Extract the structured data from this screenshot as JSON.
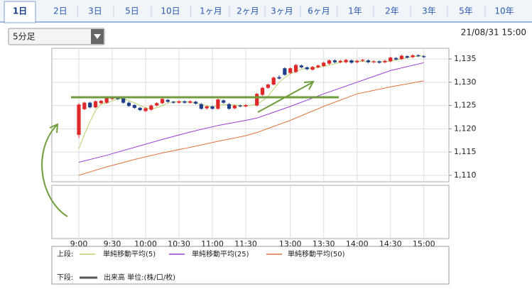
{
  "tabs": [
    "1日",
    "2日",
    "3日",
    "5日",
    "10日",
    "1ヶ月",
    "2ヶ月",
    "3ヶ月",
    "6ヶ月",
    "1年",
    "2年",
    "3年",
    "5年",
    "10年"
  ],
  "selected_tab": 0,
  "interval_select": "5分足",
  "timestamp": "21/08/31 15:00",
  "chart_data": {
    "type": "candlestick",
    "x": [
      0,
      1,
      2,
      3,
      4,
      5,
      6,
      7,
      8,
      9,
      10,
      11,
      12,
      13,
      14,
      15,
      16,
      17,
      18,
      19,
      20,
      21,
      22,
      23,
      24,
      25,
      26,
      27,
      28,
      29,
      30,
      32,
      33,
      34,
      35,
      36,
      37,
      38,
      39,
      40,
      41,
      42,
      43,
      44,
      45,
      46,
      47,
      48,
      49,
      50,
      51,
      52,
      53,
      54,
      55,
      56,
      57,
      58,
      59,
      60,
      61,
      62
    ],
    "open": [
      1118.7,
      1124.2,
      1125.6,
      1124.6,
      1125.5,
      1125.6,
      1126.4,
      1126.7,
      1126.5,
      1125.6,
      1125.1,
      1124.5,
      1123.8,
      1124.1,
      1125,
      1125.5,
      1126.2,
      1125.8,
      1125.6,
      1125.9,
      1125.6,
      1125.8,
      1125.3,
      1124.4,
      1124.8,
      1124.3,
      1126.1,
      1125.3,
      1124.4,
      1125,
      1124.8,
      1125,
      1127.3,
      1128.8,
      1129.5,
      1131.1,
      1133,
      1132,
      1132.2,
      1133.6,
      1133.2,
      1132.7,
      1133.2,
      1133.5,
      1134,
      1134.7,
      1134.3,
      1134.3,
      1134.7,
      1134.3,
      1134.6,
      1134.7,
      1134.3,
      1134.5,
      1134.3,
      1134.5,
      1135.2,
      1135,
      1135.6,
      1135.4,
      1135.8,
      1135.6
    ],
    "high": [
      1125.5,
      1125.8,
      1125.8,
      1126.1,
      1126.2,
      1126.8,
      1127,
      1126.9,
      1126.7,
      1125.8,
      1125.3,
      1124.7,
      1124.6,
      1125.2,
      1125.7,
      1126.6,
      1126.4,
      1126,
      1126.1,
      1126.1,
      1126.1,
      1126,
      1125.5,
      1125,
      1125,
      1126.5,
      1126.3,
      1125.5,
      1125.2,
      1125.2,
      1125.3,
      1127.7,
      1129,
      1129.7,
      1131.2,
      1131.5,
      1133.2,
      1133.2,
      1133.9,
      1133.8,
      1133.4,
      1133.5,
      1133.8,
      1134.4,
      1134.9,
      1134.9,
      1134.8,
      1135,
      1134.9,
      1134.8,
      1135,
      1134.9,
      1134.7,
      1134.7,
      1134.8,
      1135.5,
      1135.4,
      1135.9,
      1135.8,
      1136,
      1136,
      1135.8
    ],
    "low": [
      1118,
      1124,
      1124.4,
      1124.4,
      1125.3,
      1125.4,
      1126.2,
      1126.2,
      1125.4,
      1124.7,
      1124.3,
      1123.8,
      1123.6,
      1123.9,
      1124.8,
      1125.3,
      1125.6,
      1125.4,
      1125.4,
      1125.4,
      1125.4,
      1125.2,
      1124.1,
      1124.1,
      1124.1,
      1124.1,
      1125.4,
      1124.1,
      1124.2,
      1124.6,
      1124.6,
      1124.8,
      1127.1,
      1128.6,
      1129.3,
      1130.6,
      1131.4,
      1131.8,
      1132,
      1133,
      1132.6,
      1132.5,
      1133,
      1133.3,
      1133.8,
      1134.1,
      1134.1,
      1134.1,
      1134,
      1134.1,
      1134.4,
      1134.1,
      1134.1,
      1134,
      1134.1,
      1134.3,
      1134.7,
      1134.8,
      1135.1,
      1135.2,
      1135.4,
      1135.2
    ],
    "close": [
      1125.2,
      1125.6,
      1124.6,
      1125.9,
      1126,
      1126.6,
      1126.8,
      1126.4,
      1125.6,
      1124.9,
      1124.5,
      1124,
      1124.4,
      1125,
      1125.5,
      1126.4,
      1125.8,
      1125.6,
      1125.9,
      1125.6,
      1125.9,
      1125.4,
      1124.3,
      1124.8,
      1124.3,
      1126.3,
      1125.6,
      1124.3,
      1125,
      1124.8,
      1125.1,
      1127.5,
      1128.8,
      1129.5,
      1131,
      1130.8,
      1131.6,
      1133,
      1133.7,
      1133.2,
      1132.8,
      1133.3,
      1133.6,
      1134.2,
      1134.7,
      1134.3,
      1134.6,
      1134.8,
      1134.2,
      1134.6,
      1134.8,
      1134.3,
      1134.5,
      1134.2,
      1134.6,
      1135.3,
      1134.9,
      1135.7,
      1135.3,
      1135.8,
      1135.6,
      1135.4
    ],
    "up_color": "#e02828",
    "down_color": "#1f3f8a",
    "series": [
      {
        "name": "単純移動平均(5)",
        "color": "#b5d36a",
        "x": [
          0,
          1,
          2,
          3,
          4,
          5,
          6,
          7,
          8,
          9,
          10,
          11,
          12,
          13,
          14,
          15,
          16,
          17,
          18,
          19,
          20,
          21,
          22,
          23,
          24,
          25,
          26,
          27,
          28,
          29,
          30,
          32,
          33,
          34,
          35,
          36,
          37,
          38,
          39,
          40,
          41,
          42,
          43,
          44,
          45,
          46,
          47,
          48,
          49,
          50,
          51,
          52,
          53,
          54,
          55,
          56,
          57,
          58,
          59,
          60,
          61,
          62
        ],
        "values": [
          1115.7,
          1118.8,
          1121.5,
          1124,
          1125.3,
          1125.5,
          1126,
          1126.4,
          1126.5,
          1126,
          1125.6,
          1125,
          1124.5,
          1124.3,
          1124.5,
          1125,
          1125.5,
          1125.8,
          1125.8,
          1125.8,
          1125.7,
          1125.6,
          1125.2,
          1124.9,
          1124.7,
          1125,
          1125.2,
          1125.1,
          1125.1,
          1125,
          1124.9,
          1125.3,
          1126,
          1127,
          1128.5,
          1130,
          1131,
          1131.8,
          1132.3,
          1132.8,
          1133,
          1133,
          1133.2,
          1133.4,
          1133.7,
          1134,
          1134.3,
          1134.5,
          1134.5,
          1134.5,
          1134.5,
          1134.4,
          1134.4,
          1134.4,
          1134.4,
          1134.6,
          1134.8,
          1135,
          1135.3,
          1135.5,
          1135.6,
          1135.7
        ]
      },
      {
        "name": "単純移動平均(25)",
        "color": "#9b3fd4",
        "x": [
          0,
          5,
          10,
          15,
          20,
          25,
          30,
          32,
          38,
          44,
          50,
          56,
          62
        ],
        "values": [
          1112.8,
          1114.3,
          1116,
          1117.7,
          1119.3,
          1120.7,
          1121.8,
          1122.3,
          1124.8,
          1127.5,
          1130,
          1132.5,
          1134.2
        ]
      },
      {
        "name": "単純移動平均(50)",
        "color": "#e0743e",
        "x": [
          0,
          5,
          10,
          15,
          20,
          25,
          30,
          32,
          38,
          44,
          50,
          56,
          62
        ],
        "values": [
          1110,
          1111.8,
          1113.4,
          1114.8,
          1116,
          1117.3,
          1118.5,
          1119.2,
          1121.8,
          1124.8,
          1127.5,
          1129,
          1130.3
        ]
      }
    ],
    "xlim": [
      -4.85,
      66.5
    ],
    "xticks": [
      {
        "value": 0,
        "label": "9:00"
      },
      {
        "value": 6,
        "label": "9:30"
      },
      {
        "value": 12,
        "label": "10:00"
      },
      {
        "value": 18,
        "label": "10:30"
      },
      {
        "value": 24,
        "label": "11:00"
      },
      {
        "value": 30,
        "label": "11:30"
      },
      {
        "value": 38,
        "label": "13:00"
      },
      {
        "value": 44,
        "label": "13:30"
      },
      {
        "value": 50,
        "label": "14:00"
      },
      {
        "value": 56,
        "label": "14:30"
      },
      {
        "value": 62,
        "label": "15:00"
      }
    ],
    "ylim": [
      1108.6,
      1137.3
    ],
    "yticks": [
      {
        "value": 1110,
        "label": "1,110"
      },
      {
        "value": 1115,
        "label": "1,115"
      },
      {
        "value": 1120,
        "label": "1,120"
      },
      {
        "value": 1125,
        "label": "1,125"
      },
      {
        "value": 1130,
        "label": "1,130"
      },
      {
        "value": 1135,
        "label": "1,135"
      }
    ],
    "grid": true,
    "upper_panel_label": "上段:",
    "lower_panel": {
      "label": "下段:",
      "legend": "出来高 単位:(株/口/枚)",
      "color": "#555555"
    }
  }
}
